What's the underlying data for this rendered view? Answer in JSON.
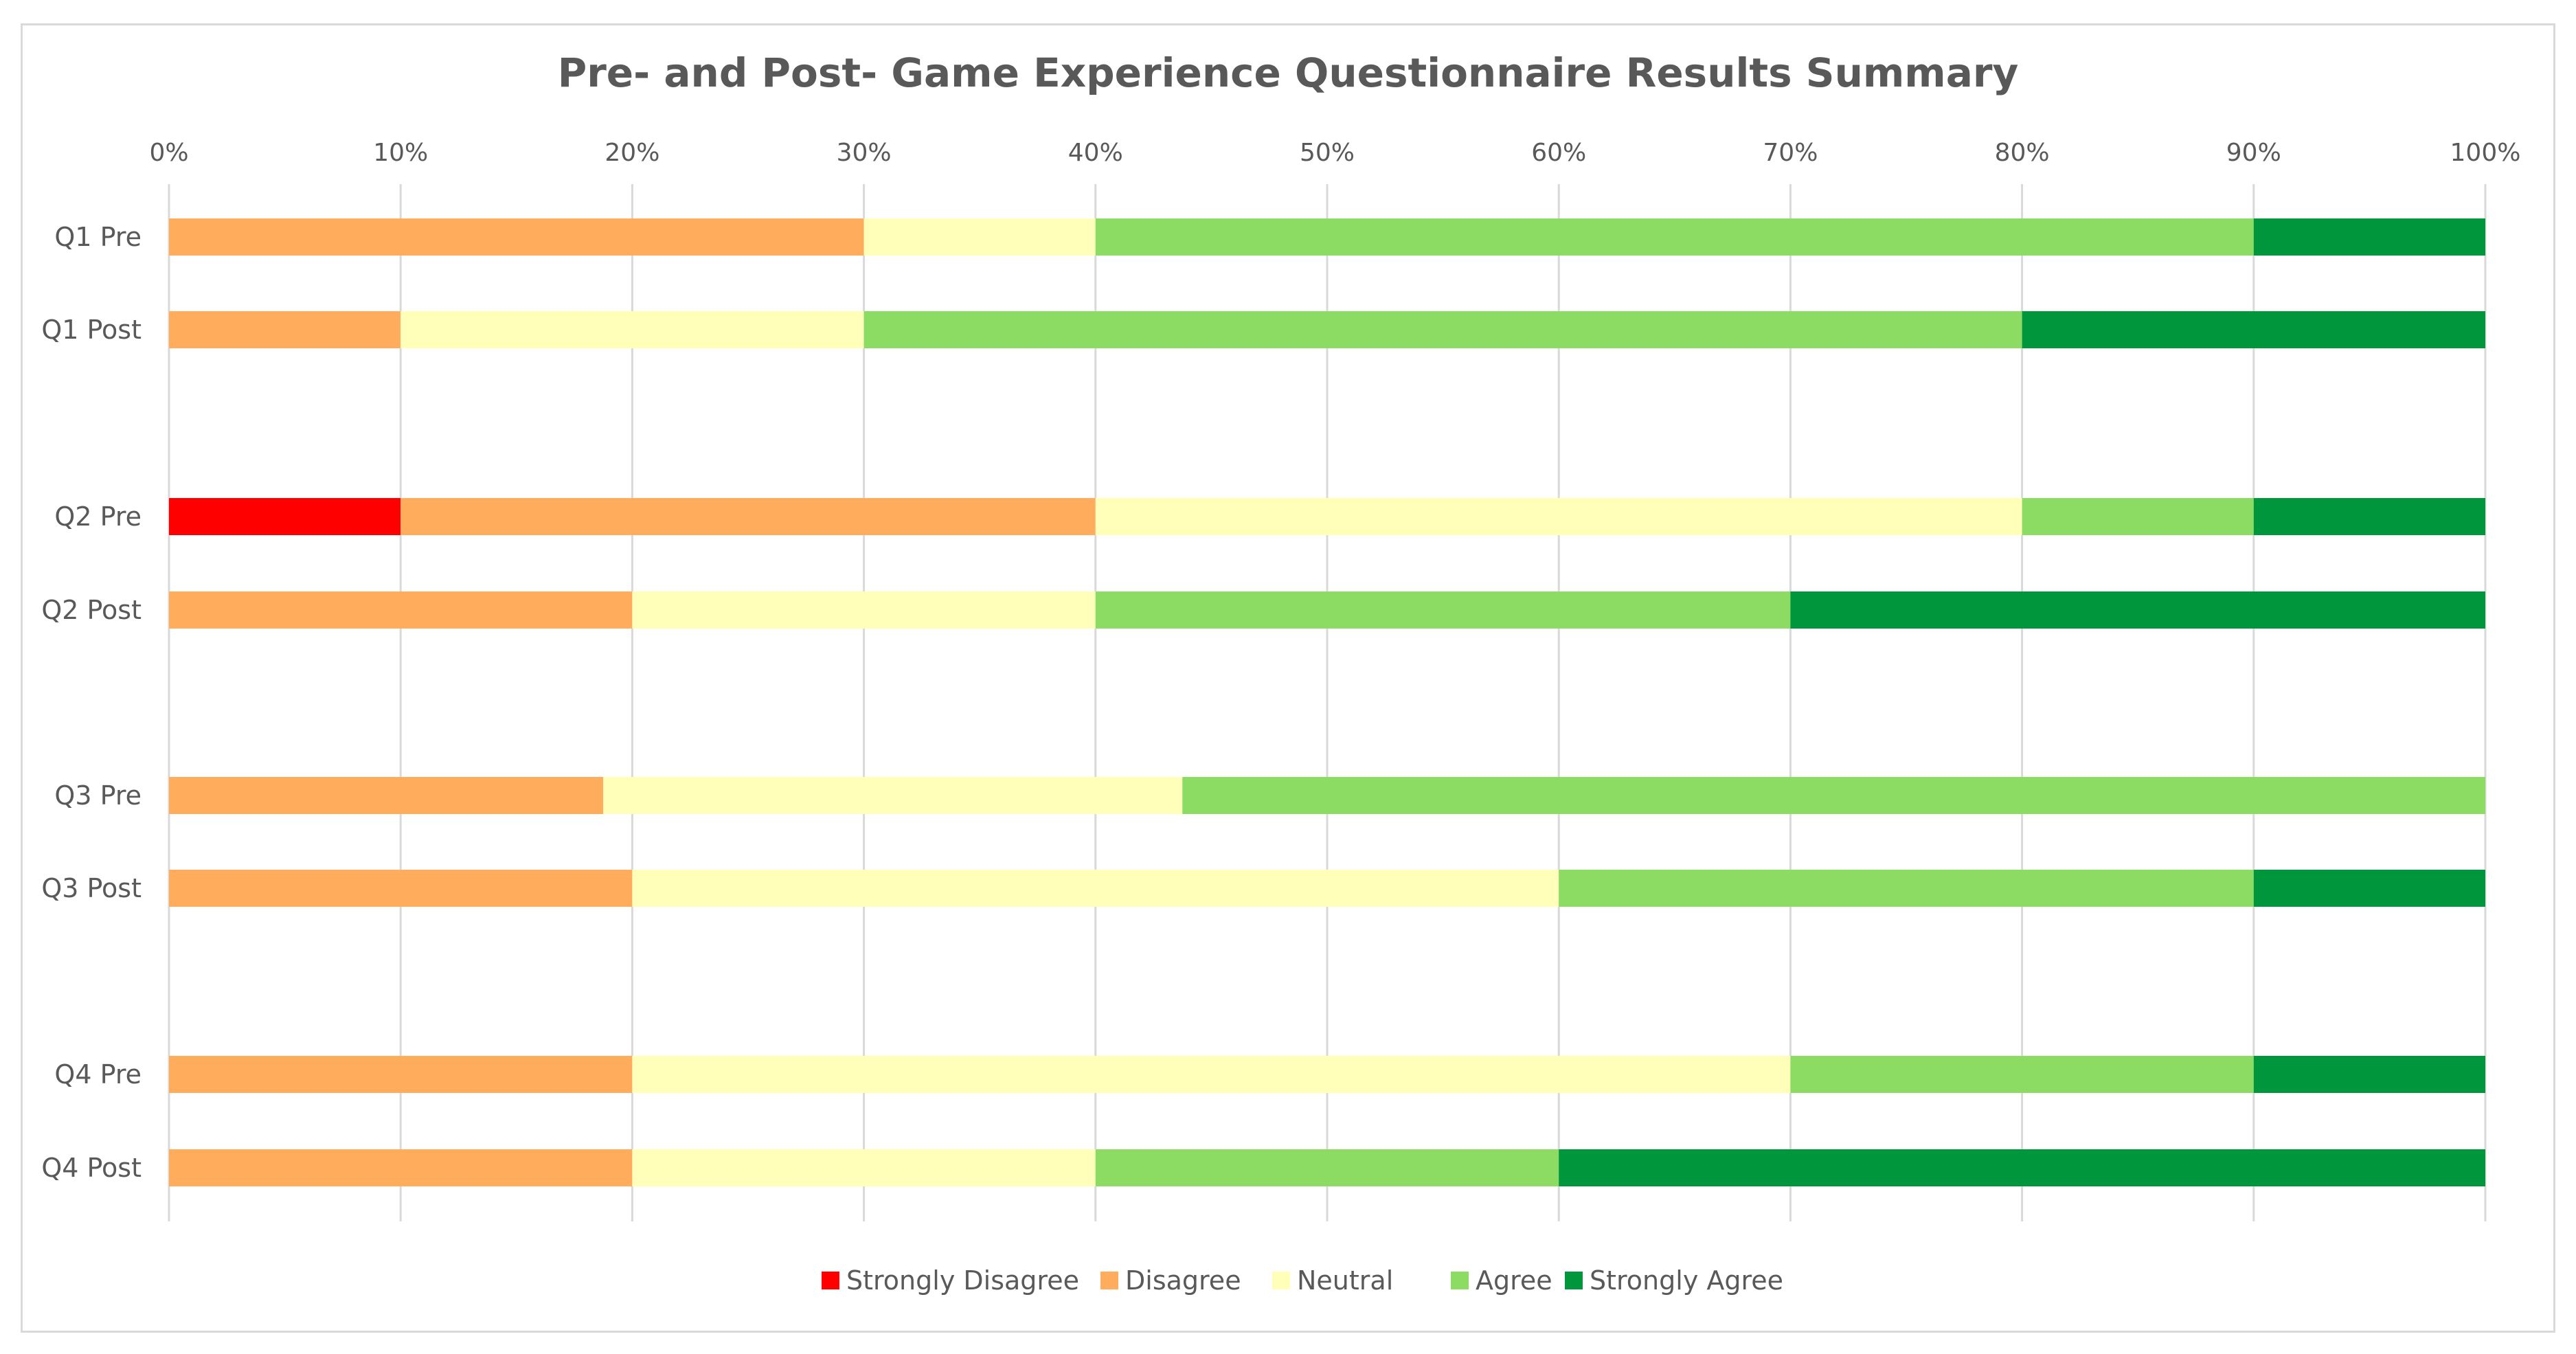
{
  "chart_data": {
    "type": "bar",
    "orientation": "horizontal",
    "stacked": "100%",
    "title": "Pre- and Post- Game Experience Questionnaire Results Summary",
    "xlabel": "",
    "ylabel": "",
    "xlim": [
      0,
      100
    ],
    "x_ticks": [
      "0%",
      "10%",
      "20%",
      "30%",
      "40%",
      "50%",
      "60%",
      "70%",
      "80%",
      "90%",
      "100%"
    ],
    "grid": "vertical",
    "legend_position": "bottom",
    "categories": [
      "Q1 Pre",
      "Q1 Post",
      "Q2 Pre",
      "Q2 Post",
      "Q3 Pre",
      "Q3 Post",
      "Q4 Pre",
      "Q4 Post"
    ],
    "series": [
      {
        "name": "Strongly Disagree",
        "color": "#ff0000",
        "values": [
          0,
          0,
          10,
          0,
          0,
          0,
          0,
          0
        ]
      },
      {
        "name": "Disagree",
        "color": "#ffad5c",
        "values": [
          30,
          10,
          30,
          20,
          18.75,
          20,
          20,
          20
        ]
      },
      {
        "name": "Neutral",
        "color": "#ffffb9",
        "values": [
          10,
          20,
          40,
          20,
          25,
          40,
          50,
          20
        ]
      },
      {
        "name": "Agree",
        "color": "#8cdc64",
        "values": [
          50,
          50,
          10,
          30,
          56.25,
          30,
          20,
          20
        ]
      },
      {
        "name": "Strongly Agree",
        "color": "#00963c",
        "values": [
          10,
          20,
          10,
          30,
          0,
          10,
          10,
          40
        ]
      }
    ]
  }
}
